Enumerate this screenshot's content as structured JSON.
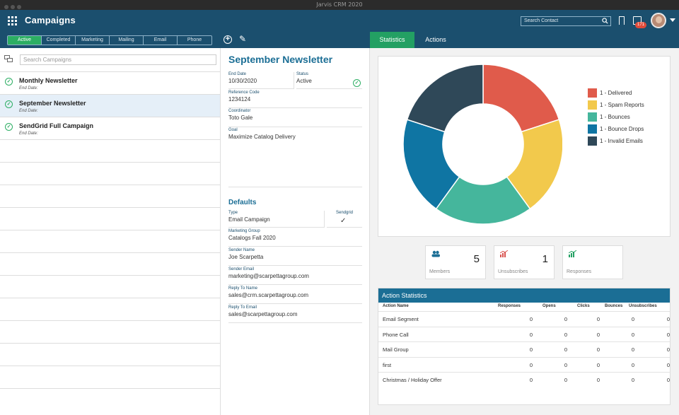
{
  "window": {
    "title": "Jarvis CRM 2020"
  },
  "header": {
    "title": "Campaigns",
    "search_placeholder": "Search Contact",
    "notifications": "171"
  },
  "filters": [
    "Active",
    "Completed",
    "Marketing",
    "Mailing",
    "Email",
    "Phone"
  ],
  "tabs": {
    "statistics": "Statistics",
    "actions": "Actions"
  },
  "list": {
    "search_placeholder": "Search Campaigns",
    "items": [
      {
        "name": "Monthly Newsletter",
        "sub": "End Date:"
      },
      {
        "name": "September Newsletter",
        "sub": "End Date:"
      },
      {
        "name": "SendGrid Full Campaign",
        "sub": "End Date:"
      }
    ]
  },
  "detail": {
    "title": "September Newsletter",
    "end_date_label": "End Date",
    "end_date": "10/30/2020",
    "status_label": "Status",
    "status": "Active",
    "reference_label": "Reference Code",
    "reference": "1234124",
    "coordinator_label": "Coordinator",
    "coordinator": "Toto Gale",
    "goal_label": "Goal",
    "goal": "Maximize Catalog Delivery",
    "defaults_title": "Defaults",
    "type_label": "Type",
    "type": "Email Campaign",
    "sendgrid_label": "Sendgrid",
    "marketing_group_label": "Marketing Group",
    "marketing_group": "Catalogs Fall 2020",
    "sender_name_label": "Sender Name",
    "sender_name": "Joe Scarpetta",
    "sender_email_label": "Sender Email",
    "sender_email": "marketing@scarpettagroup.com",
    "reply_to_name_label": "Reply To Name",
    "reply_to_name": "sales@crm.scarpettagroup.com",
    "reply_to_email_label": "Reply To Email",
    "reply_to_email": "sales@scarpettagroup.com"
  },
  "chart_data": {
    "type": "pie",
    "donut": true,
    "categories": [
      "1 - Delivered",
      "1 - Spam Reports",
      "1 - Bounces",
      "1 - Bounce Drops",
      "1 - Invalid Emails"
    ],
    "values": [
      1,
      1,
      1,
      1,
      1
    ],
    "colors": [
      "#e05b4b",
      "#f2c94c",
      "#45b69c",
      "#0f75a3",
      "#2f4858"
    ],
    "legend": "right"
  },
  "stats": [
    {
      "label": "Members",
      "value": "5",
      "icon": "members-icon"
    },
    {
      "label": "Unsubscribes",
      "value": "1",
      "icon": "unsubscribe-chart-icon"
    },
    {
      "label": "Responses",
      "value": "",
      "icon": "responses-chart-icon"
    }
  ],
  "action_stats": {
    "title": "Action Statistics",
    "columns": [
      "Action Name",
      "Responses",
      "Opens",
      "Clicks",
      "Bounces",
      "Unsubscribes"
    ],
    "rows": [
      {
        "name": "Email Segment",
        "values": [
          "0",
          "0",
          "0",
          "0",
          "0"
        ]
      },
      {
        "name": "Phone Call",
        "values": [
          "0",
          "0",
          "0",
          "0",
          "0"
        ]
      },
      {
        "name": "Mail Group",
        "values": [
          "0",
          "0",
          "0",
          "0",
          "0"
        ]
      },
      {
        "name": "first",
        "values": [
          "0",
          "0",
          "0",
          "0",
          "0"
        ]
      },
      {
        "name": "Christmas / Holiday Offer",
        "values": [
          "0",
          "0",
          "0",
          "0",
          "0"
        ]
      }
    ]
  }
}
